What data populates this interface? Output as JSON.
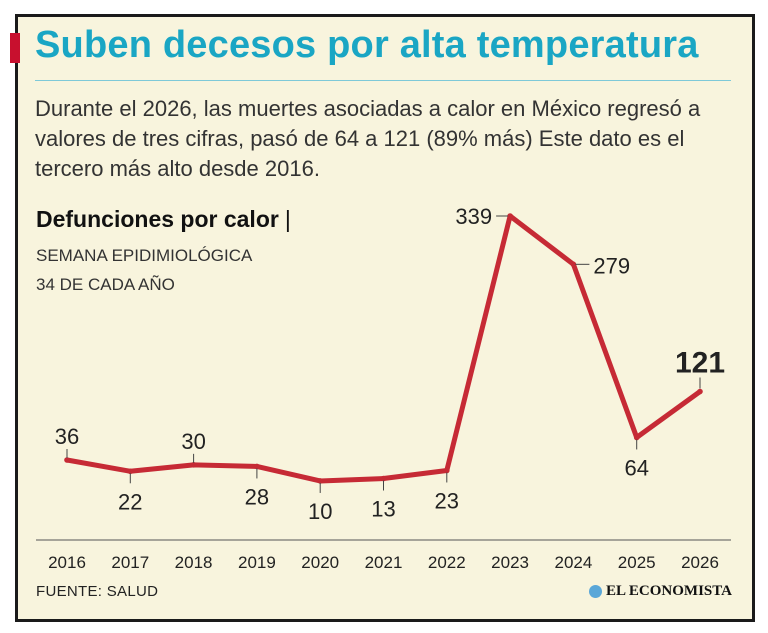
{
  "header": {
    "title": "Suben decesos por alta temperatura",
    "intro": "Durante el 2026, las muertes asociadas a calor en México regresó a valores de tres cifras, pasó de 64 a 121 (89% más) Este dato es el tercero más alto desde 2016."
  },
  "chart_header": {
    "title": "Defunciones por calor",
    "separator": "|",
    "subtitle_line1": "SEMANA EPIDIMIOLÓGICA",
    "subtitle_line2": "34 DE CADA AÑO"
  },
  "footer": {
    "source": "FUENTE: SALUD",
    "brand": "EL ECONOMISTA"
  },
  "colors": {
    "title": "#1aa6c4",
    "line": "#c62a35",
    "background": "#f8f4dd",
    "accent_mark": "#c8102e"
  },
  "chart_data": {
    "type": "line",
    "x": [
      "2016",
      "2017",
      "2018",
      "2019",
      "2020",
      "2021",
      "2022",
      "2023",
      "2024",
      "2025",
      "2026"
    ],
    "series": [
      {
        "values": [
          36,
          22,
          30,
          28,
          10,
          13,
          23,
          339,
          279,
          64,
          121
        ]
      }
    ],
    "ylim": [
      0,
      350
    ],
    "grid": false,
    "highlight_last": true
  }
}
